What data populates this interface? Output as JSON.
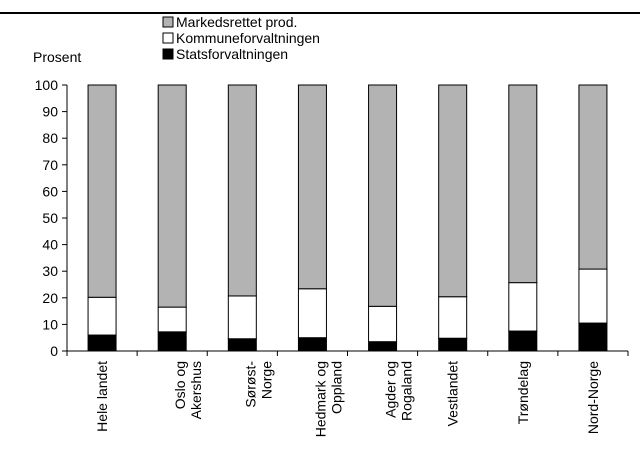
{
  "chart_data": {
    "type": "bar",
    "stacked": true,
    "percent_stacked": true,
    "ylabel": "Prosent",
    "ylim": [
      0,
      100
    ],
    "yticks": [
      0,
      10,
      20,
      30,
      40,
      50,
      60,
      70,
      80,
      90,
      100
    ],
    "grid": false,
    "legend_position": "top",
    "categories": [
      [
        "Hele landet"
      ],
      [
        "Oslo og",
        "Akershus"
      ],
      [
        "Sørøst-",
        "Norge"
      ],
      [
        "Hedmark og",
        "Oppland"
      ],
      [
        "Agder og",
        "Rogaland"
      ],
      [
        "Vestlandet"
      ],
      [
        "Trøndelag"
      ],
      [
        "Nord-Norge"
      ]
    ],
    "series": [
      {
        "name": "Statsforvaltningen",
        "color": "#000000",
        "values": [
          6,
          7.2,
          4.6,
          5,
          3.5,
          4.8,
          7.5,
          10.5
        ]
      },
      {
        "name": "Kommuneforvaltningen",
        "color": "#ffffff",
        "values": [
          14.2,
          9.3,
          16.1,
          18.4,
          13.3,
          15.6,
          18.2,
          20.3
        ]
      },
      {
        "name": "Markedsrettet prod.",
        "color": "#b3b3b3",
        "values": [
          79.8,
          83.5,
          79.3,
          76.6,
          83.2,
          79.6,
          74.3,
          69.2
        ]
      }
    ],
    "legend_order": [
      "Markedsrettet prod.",
      "Kommuneforvaltningen",
      "Statsforvaltningen"
    ]
  }
}
